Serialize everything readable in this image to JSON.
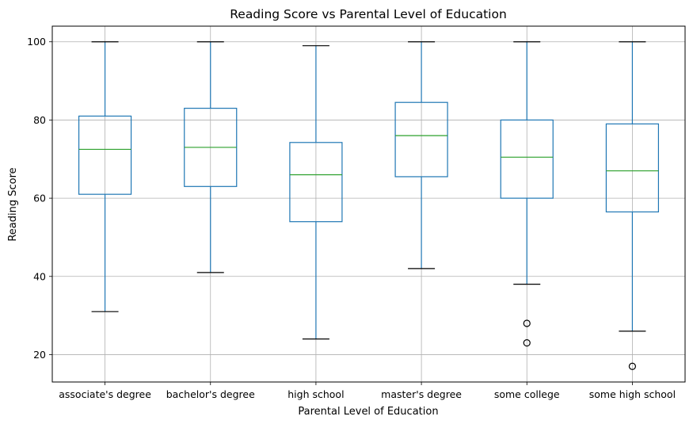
{
  "chart_data": {
    "type": "boxplot",
    "title": "Reading Score vs Parental Level of Education",
    "xlabel": "Parental Level of Education",
    "ylabel": "Reading Score",
    "ylim": [
      13,
      104
    ],
    "yticks": [
      20,
      40,
      60,
      80,
      100
    ],
    "grid": true,
    "categories": [
      "associate's degree",
      "bachelor's degree",
      "high school",
      "master's degree",
      "some college",
      "some high school"
    ],
    "boxes": [
      {
        "category": "associate's degree",
        "whisker_low": 31,
        "q1": 61,
        "median": 72.5,
        "q3": 81,
        "whisker_high": 100,
        "outliers": []
      },
      {
        "category": "bachelor's degree",
        "whisker_low": 41,
        "q1": 63,
        "median": 73,
        "q3": 83,
        "whisker_high": 100,
        "outliers": []
      },
      {
        "category": "high school",
        "whisker_low": 24,
        "q1": 54,
        "median": 66,
        "q3": 74.25,
        "whisker_high": 99,
        "outliers": []
      },
      {
        "category": "master's degree",
        "whisker_low": 42,
        "q1": 65.5,
        "median": 76,
        "q3": 84.5,
        "whisker_high": 100,
        "outliers": []
      },
      {
        "category": "some college",
        "whisker_low": 38,
        "q1": 60,
        "median": 70.5,
        "q3": 80,
        "whisker_high": 100,
        "outliers": [
          28,
          23
        ]
      },
      {
        "category": "some high school",
        "whisker_low": 26,
        "q1": 56.5,
        "median": 67,
        "q3": 79,
        "whisker_high": 100,
        "outliers": [
          17
        ]
      }
    ],
    "colors": {
      "box": "#1f77b4",
      "median": "#2ca02c",
      "cap": "#000000",
      "grid": "#b0b0b0",
      "outlier": "#000000"
    }
  }
}
